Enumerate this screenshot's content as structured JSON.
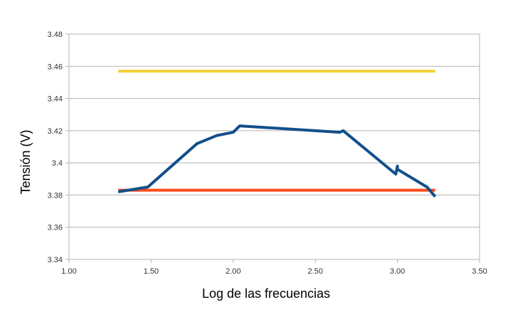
{
  "chart_data": {
    "type": "line",
    "title": "",
    "xlabel": "Log de las frecuencias",
    "ylabel": "Tensión (V)",
    "xlim": [
      1.0,
      3.5
    ],
    "ylim": [
      3.34,
      3.48
    ],
    "x_ticks": [
      "1.00",
      "1.50",
      "2.00",
      "2.50",
      "3.00",
      "3.50"
    ],
    "x_tick_values": [
      1.0,
      1.5,
      2.0,
      2.5,
      3.0,
      3.5
    ],
    "y_ticks": [
      "3.48",
      "3.46",
      "3.44",
      "3.42",
      "3.4",
      "3.38",
      "3.36",
      "3.34"
    ],
    "y_tick_values": [
      3.48,
      3.46,
      3.44,
      3.42,
      3.4,
      3.38,
      3.36,
      3.34
    ],
    "grid": "horizontal",
    "legend": "none",
    "series": [
      {
        "color": "#f5d033",
        "x": [
          1.3,
          3.23
        ],
        "values": [
          3.457,
          3.457
        ]
      },
      {
        "color": "#ff4a1a",
        "x": [
          1.3,
          3.23
        ],
        "values": [
          3.383,
          3.383
        ]
      },
      {
        "color": "#124f8a",
        "x": [
          1.3,
          1.48,
          1.78,
          1.9,
          2.0,
          2.04,
          2.65,
          2.67,
          2.99,
          3.0,
          3.0,
          3.18,
          3.23
        ],
        "values": [
          3.382,
          3.385,
          3.412,
          3.417,
          3.419,
          3.423,
          3.419,
          3.42,
          3.393,
          3.398,
          3.396,
          3.385,
          3.379
        ]
      }
    ]
  }
}
